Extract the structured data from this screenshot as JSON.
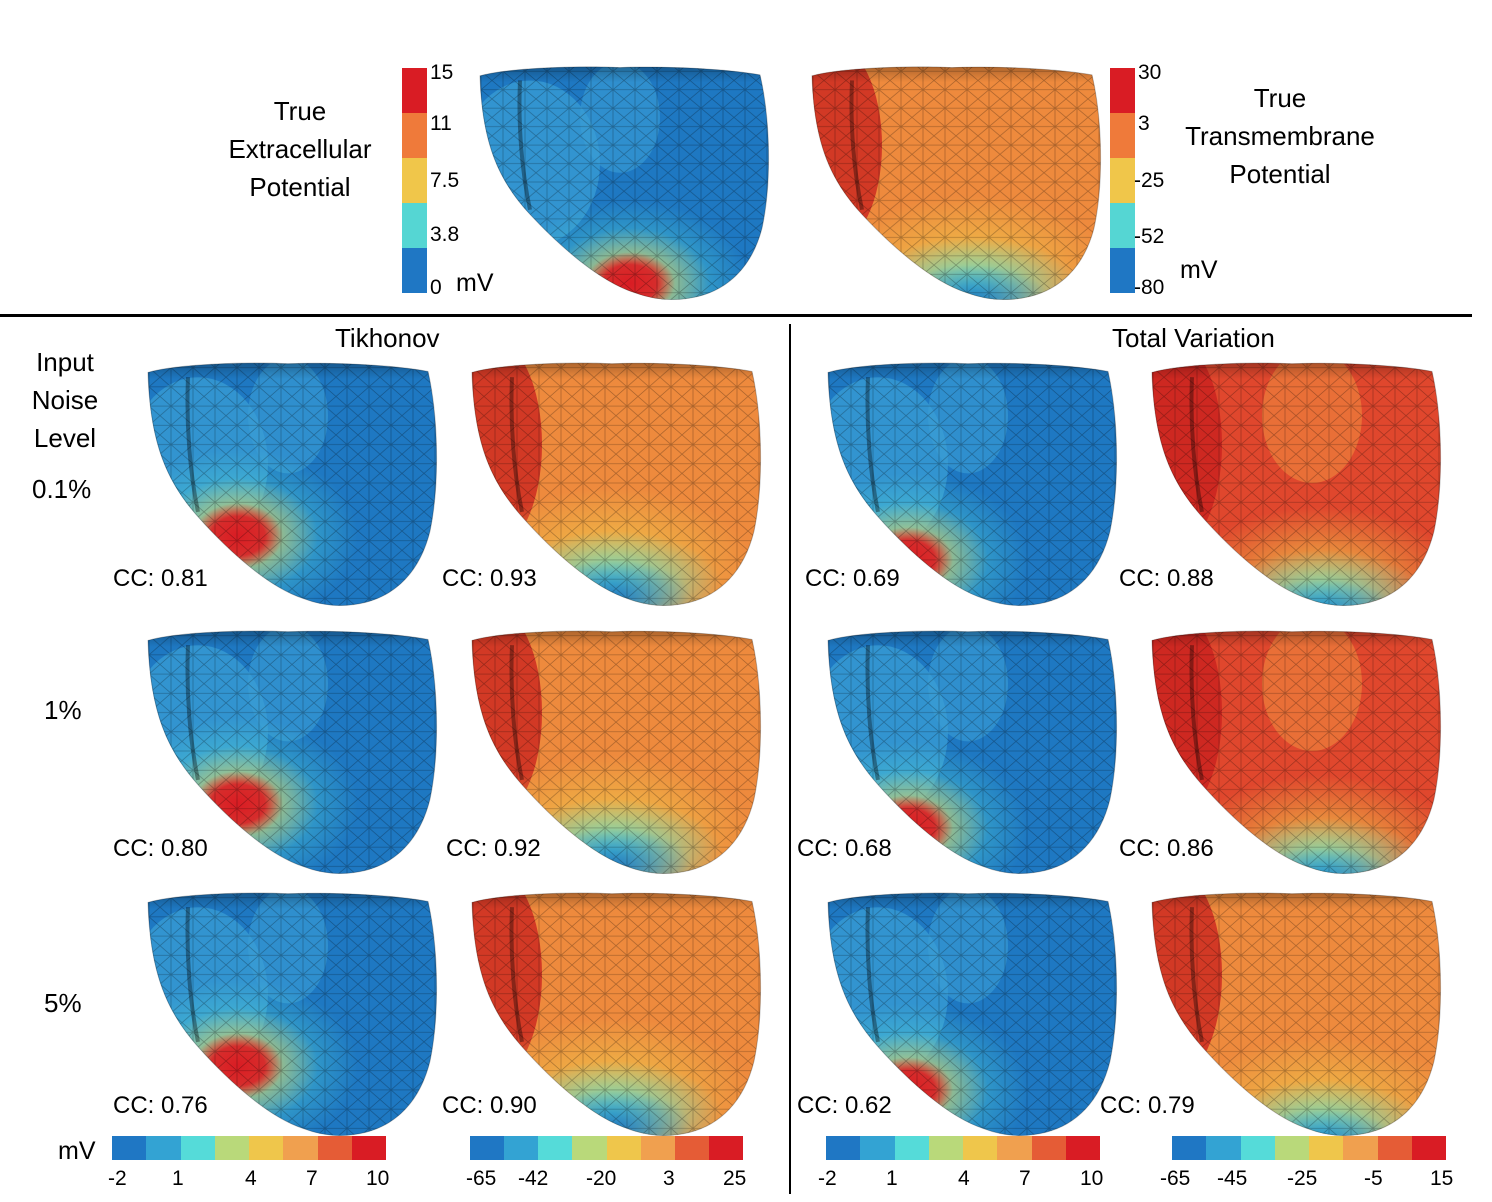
{
  "header": {
    "left_title": [
      "True",
      "Extracellular",
      "Potential"
    ],
    "right_title": [
      "True",
      "Transmembrane",
      "Potential"
    ],
    "left_scale_ticks": [
      "15",
      "11",
      "7.5",
      "3.8",
      "0"
    ],
    "left_scale_unit": "mV",
    "right_scale_ticks": [
      "30",
      "3",
      "-25",
      "-52",
      "-80"
    ],
    "right_scale_unit": "mV"
  },
  "sections": {
    "left": "Tikhonov",
    "right": "Total Variation"
  },
  "row_header": [
    "Input",
    "Noise",
    "Level"
  ],
  "noise_levels": [
    "0.1%",
    "1%",
    "5%"
  ],
  "cc_values": {
    "tikhonov_extracellular": [
      "CC: 0.81",
      "CC: 0.80",
      "CC: 0.76"
    ],
    "tikhonov_transmembrane": [
      "CC: 0.93",
      "CC: 0.92",
      "CC: 0.90"
    ],
    "tv_extracellular": [
      "CC: 0.69",
      "CC: 0.68",
      "CC: 0.62"
    ],
    "tv_transmembrane": [
      "CC: 0.88",
      "CC: 0.86",
      "CC: 0.79"
    ]
  },
  "bottom_scales": {
    "unit": "mV",
    "scale1": [
      "-2",
      "1",
      "4",
      "7",
      "10"
    ],
    "scale2": [
      "-65",
      "-42",
      "-20",
      "3",
      "25"
    ],
    "scale3": [
      "-2",
      "1",
      "4",
      "7",
      "10"
    ],
    "scale4": [
      "-65",
      "-45",
      "-25",
      "-5",
      "15"
    ]
  },
  "colors": {
    "scale": [
      "#1f77c4",
      "#33a3d3",
      "#55dbd9",
      "#b9d97a",
      "#efc64b",
      "#f0a04f",
      "#e55c36",
      "#d91c24"
    ],
    "dark_blue": "#1e78c2",
    "mid_blue": "#3b9fd6",
    "cyan": "#56d8d5",
    "yellow": "#efc64b",
    "orange": "#ee8a3d",
    "red": "#d91c24",
    "dark_red": "#c81e1e"
  }
}
